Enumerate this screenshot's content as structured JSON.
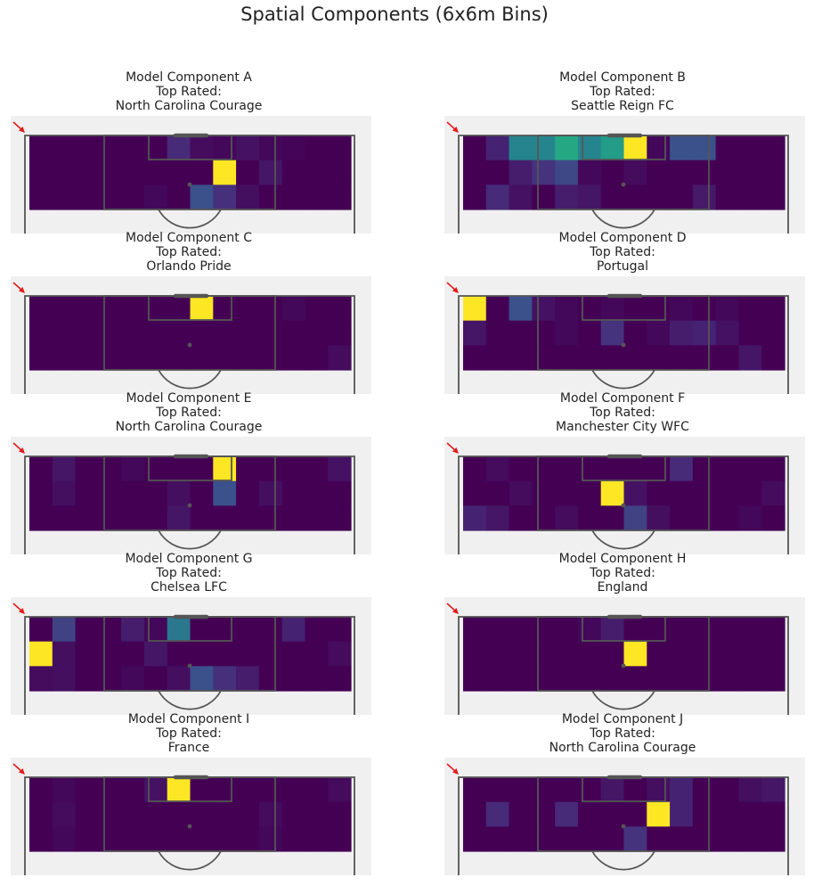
{
  "figure_title": "Spatial Components (6x6m Bins)",
  "colors": {
    "background": "#f0f0f0",
    "pitch_lines": "#555555",
    "goal_bar": "#555555",
    "arrow": "#e31a1c",
    "colormap": [
      "#440154",
      "#472c7a",
      "#3b518b",
      "#2c718e",
      "#21908d",
      "#27ad81",
      "#5cc863",
      "#aadc32",
      "#fde725"
    ]
  },
  "chart_data": [
    {
      "type": "heatmap",
      "title_lines": [
        "Model Component A",
        "Top Rated:",
        "North Carolina Courage"
      ],
      "grid_cols": 14,
      "grid_rows": 3,
      "value_range": [
        0,
        1
      ],
      "values": [
        [
          0.0,
          0.0,
          0.0,
          0.0,
          0.0,
          0.0,
          0.12,
          0.03,
          0.02,
          0.05,
          0.02,
          0.01,
          0.0,
          0.0
        ],
        [
          0.0,
          0.0,
          0.0,
          0.0,
          0.0,
          0.0,
          0.0,
          0.0,
          1.0,
          0.0,
          0.06,
          0.0,
          0.0,
          0.0
        ],
        [
          0.0,
          0.0,
          0.0,
          0.0,
          0.0,
          0.02,
          0.0,
          0.25,
          0.14,
          0.04,
          0.0,
          0.0,
          0.0,
          0.0
        ]
      ]
    },
    {
      "type": "heatmap",
      "title_lines": [
        "Model Component B",
        "Top Rated:",
        "Seattle Reign FC"
      ],
      "grid_cols": 14,
      "grid_rows": 3,
      "value_range": [
        0,
        1
      ],
      "values": [
        [
          0.0,
          0.1,
          0.45,
          0.45,
          0.6,
          0.45,
          0.55,
          1.0,
          0.02,
          0.25,
          0.25,
          0.0,
          0.0,
          0.0
        ],
        [
          0.0,
          0.0,
          0.08,
          0.15,
          0.22,
          0.02,
          0.0,
          0.03,
          0.0,
          0.0,
          0.0,
          0.0,
          0.0,
          0.0
        ],
        [
          0.0,
          0.12,
          0.05,
          0.0,
          0.08,
          0.06,
          0.0,
          0.0,
          0.0,
          0.0,
          0.07,
          0.0,
          0.0,
          0.0
        ]
      ]
    },
    {
      "type": "heatmap",
      "title_lines": [
        "Model Component C",
        "Top Rated:",
        "Orlando Pride"
      ],
      "grid_cols": 14,
      "grid_rows": 3,
      "value_range": [
        0,
        1
      ],
      "values": [
        [
          0.0,
          0.0,
          0.0,
          0.0,
          0.0,
          0.0,
          0.0,
          1.0,
          0.0,
          0.0,
          0.0,
          0.02,
          0.0,
          0.0
        ],
        [
          0.0,
          0.0,
          0.0,
          0.0,
          0.0,
          0.0,
          0.0,
          0.0,
          0.0,
          0.0,
          0.0,
          0.0,
          0.0,
          0.0
        ],
        [
          0.0,
          0.0,
          0.0,
          0.0,
          0.0,
          0.0,
          0.0,
          0.0,
          0.0,
          0.0,
          0.0,
          0.0,
          0.0,
          0.03
        ]
      ]
    },
    {
      "type": "heatmap",
      "title_lines": [
        "Model Component D",
        "Top Rated:",
        "Portugal"
      ],
      "grid_cols": 14,
      "grid_rows": 3,
      "value_range": [
        0,
        1
      ],
      "values": [
        [
          1.0,
          0.0,
          0.25,
          0.05,
          0.02,
          0.0,
          0.02,
          0.0,
          0.0,
          0.02,
          0.0,
          0.02,
          0.0,
          0.0
        ],
        [
          0.06,
          0.0,
          0.0,
          0.0,
          0.02,
          0.0,
          0.15,
          0.0,
          0.02,
          0.08,
          0.1,
          0.05,
          0.0,
          0.0
        ],
        [
          0.0,
          0.0,
          0.0,
          0.0,
          0.0,
          0.0,
          0.0,
          0.0,
          0.0,
          0.0,
          0.0,
          0.0,
          0.06,
          0.0
        ]
      ]
    },
    {
      "type": "heatmap",
      "title_lines": [
        "Model Component E",
        "Top Rated:",
        "North Carolina Courage"
      ],
      "grid_cols": 14,
      "grid_rows": 3,
      "value_range": [
        0,
        1
      ],
      "values": [
        [
          0.0,
          0.06,
          0.0,
          0.0,
          0.02,
          0.0,
          0.0,
          0.0,
          1.0,
          0.0,
          0.0,
          0.0,
          0.0,
          0.05
        ],
        [
          0.0,
          0.04,
          0.0,
          0.0,
          0.0,
          0.0,
          0.04,
          0.0,
          0.25,
          0.0,
          0.04,
          0.0,
          0.0,
          0.0
        ],
        [
          0.0,
          0.0,
          0.0,
          0.0,
          0.0,
          0.0,
          0.06,
          0.0,
          0.0,
          0.0,
          0.0,
          0.0,
          0.0,
          0.0
        ]
      ]
    },
    {
      "type": "heatmap",
      "title_lines": [
        "Model Component F",
        "Top Rated:",
        "Manchester City WFC"
      ],
      "grid_cols": 14,
      "grid_rows": 3,
      "value_range": [
        0,
        1
      ],
      "values": [
        [
          0.0,
          0.03,
          0.0,
          0.0,
          0.0,
          0.0,
          0.0,
          0.0,
          0.0,
          0.12,
          0.0,
          0.0,
          0.0,
          0.0
        ],
        [
          0.0,
          0.0,
          0.03,
          0.0,
          0.0,
          0.0,
          1.0,
          0.05,
          0.0,
          0.0,
          0.0,
          0.0,
          0.0,
          0.03
        ],
        [
          0.1,
          0.06,
          0.0,
          0.0,
          0.03,
          0.0,
          0.0,
          0.2,
          0.04,
          0.0,
          0.0,
          0.0,
          0.02,
          0.0
        ]
      ]
    },
    {
      "type": "heatmap",
      "title_lines": [
        "Model Component G",
        "Top Rated:",
        "Chelsea LFC"
      ],
      "grid_cols": 14,
      "grid_rows": 3,
      "value_range": [
        0,
        1
      ],
      "values": [
        [
          0.0,
          0.2,
          0.0,
          0.0,
          0.08,
          0.02,
          0.4,
          0.0,
          0.0,
          0.0,
          0.0,
          0.1,
          0.0,
          0.0
        ],
        [
          1.0,
          0.04,
          0.0,
          0.0,
          0.0,
          0.06,
          0.0,
          0.0,
          0.0,
          0.0,
          0.0,
          0.0,
          0.0,
          0.03
        ],
        [
          0.03,
          0.04,
          0.0,
          0.0,
          0.02,
          0.0,
          0.04,
          0.25,
          0.14,
          0.08,
          0.0,
          0.0,
          0.0,
          0.0
        ]
      ]
    },
    {
      "type": "heatmap",
      "title_lines": [
        "Model Component H",
        "Top Rated:",
        "England"
      ],
      "grid_cols": 14,
      "grid_rows": 3,
      "value_range": [
        0,
        1
      ],
      "values": [
        [
          0.0,
          0.0,
          0.0,
          0.0,
          0.0,
          0.02,
          0.08,
          0.0,
          0.0,
          0.0,
          0.0,
          0.0,
          0.0,
          0.0
        ],
        [
          0.0,
          0.0,
          0.0,
          0.0,
          0.0,
          0.0,
          0.0,
          1.0,
          0.0,
          0.0,
          0.0,
          0.0,
          0.0,
          0.0
        ],
        [
          0.0,
          0.0,
          0.0,
          0.0,
          0.0,
          0.0,
          0.0,
          0.0,
          0.0,
          0.0,
          0.0,
          0.0,
          0.0,
          0.0
        ]
      ]
    },
    {
      "type": "heatmap",
      "title_lines": [
        "Model Component I",
        "Top Rated:",
        "France"
      ],
      "grid_cols": 14,
      "grid_rows": 3,
      "value_range": [
        0,
        1
      ],
      "values": [
        [
          0.0,
          0.02,
          0.0,
          0.0,
          0.0,
          0.05,
          1.0,
          0.0,
          0.0,
          0.0,
          0.0,
          0.0,
          0.0,
          0.03
        ],
        [
          0.0,
          0.03,
          0.0,
          0.0,
          0.0,
          0.0,
          0.0,
          0.0,
          0.0,
          0.0,
          0.03,
          0.0,
          0.0,
          0.0
        ],
        [
          0.0,
          0.02,
          0.0,
          0.0,
          0.0,
          0.0,
          0.0,
          0.0,
          0.0,
          0.0,
          0.02,
          0.0,
          0.0,
          0.0
        ]
      ]
    },
    {
      "type": "heatmap",
      "title_lines": [
        "Model Component J",
        "Top Rated:",
        "North Carolina Courage"
      ],
      "grid_cols": 14,
      "grid_rows": 3,
      "value_range": [
        0,
        1
      ],
      "values": [
        [
          0.0,
          0.0,
          0.0,
          0.0,
          0.0,
          0.0,
          0.06,
          0.0,
          0.04,
          0.1,
          0.0,
          0.0,
          0.04,
          0.06
        ],
        [
          0.0,
          0.12,
          0.0,
          0.0,
          0.12,
          0.0,
          0.0,
          0.0,
          1.0,
          0.1,
          0.0,
          0.0,
          0.0,
          0.0
        ],
        [
          0.0,
          0.0,
          0.0,
          0.0,
          0.0,
          0.0,
          0.0,
          0.15,
          0.0,
          0.0,
          0.0,
          0.0,
          0.0,
          0.0
        ]
      ]
    }
  ]
}
